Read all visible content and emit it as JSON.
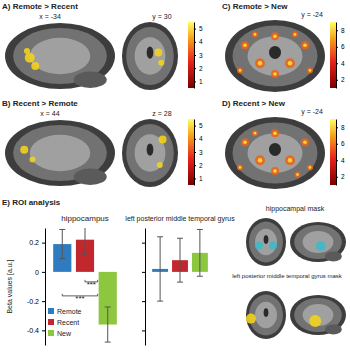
{
  "panels": [
    {
      "title": "A) Remote > Recent",
      "slices": [
        "x = -34",
        "y = 30"
      ],
      "colorbar": {
        "range": [
          0.5,
          5.5
        ],
        "ticks": [
          1,
          2,
          3,
          4,
          5
        ]
      }
    },
    {
      "title": "B) Recent > Remote",
      "slices": [
        "x = 44",
        "z = 28"
      ],
      "colorbar": {
        "range": [
          0.5,
          5.5
        ],
        "ticks": [
          1,
          2,
          3,
          4,
          5
        ]
      }
    },
    {
      "title": "C) Remote > New",
      "slices": [
        "y = -24"
      ],
      "colorbar": {
        "range": [
          1,
          9
        ],
        "ticks": [
          2,
          4,
          6,
          8
        ]
      }
    },
    {
      "title": "D) Recent > New",
      "slices": [
        "y = -24"
      ],
      "colorbar": {
        "range": [
          1,
          9
        ],
        "ticks": [
          2,
          4,
          6,
          8
        ]
      }
    }
  ],
  "roi_title": "E) ROI analysis",
  "chart_data": [
    {
      "type": "bar",
      "title": "hippocampus",
      "y_label": "Beta values [a.u.]",
      "categories": [
        null
      ],
      "series": [
        {
          "name": "Remote",
          "color": "#2f7bbf",
          "values": [
            0.19
          ],
          "errors": [
            0.1
          ]
        },
        {
          "name": "Recent",
          "color": "#c1272d",
          "values": [
            0.22
          ],
          "errors": [
            0.1
          ]
        },
        {
          "name": "New",
          "color": "#8dc63f",
          "values": [
            -0.36
          ],
          "errors": [
            0.12
          ]
        }
      ],
      "ylim": [
        -0.5,
        0.3
      ],
      "yticks": [
        -0.4,
        -0.2,
        0,
        0.2
      ],
      "tick_labels": "y",
      "legend": "lower left",
      "annotations": [
        {
          "text": "***",
          "pair": [
            1,
            2
          ]
        },
        {
          "text": "***",
          "pair": [
            0,
            2
          ]
        }
      ]
    },
    {
      "type": "bar",
      "title": "left posterior middle temporal gyrus",
      "categories": [
        null
      ],
      "series": [
        {
          "color": "#2f7bbf",
          "values": [
            0.02
          ],
          "errors": [
            0.22
          ]
        },
        {
          "color": "#c1272d",
          "values": [
            0.08
          ],
          "errors": [
            0.15
          ]
        },
        {
          "color": "#8dc63f",
          "values": [
            0.13
          ],
          "errors": [
            0.16
          ]
        }
      ],
      "ylim": [
        -0.5,
        0.3
      ],
      "yticks": [
        -0.4,
        -0.2,
        0,
        0.2
      ],
      "tick_labels": false
    }
  ],
  "masks": [
    {
      "label": "hippocampal mask"
    },
    {
      "label": "left posterior middle temporal gyrus mask"
    }
  ]
}
